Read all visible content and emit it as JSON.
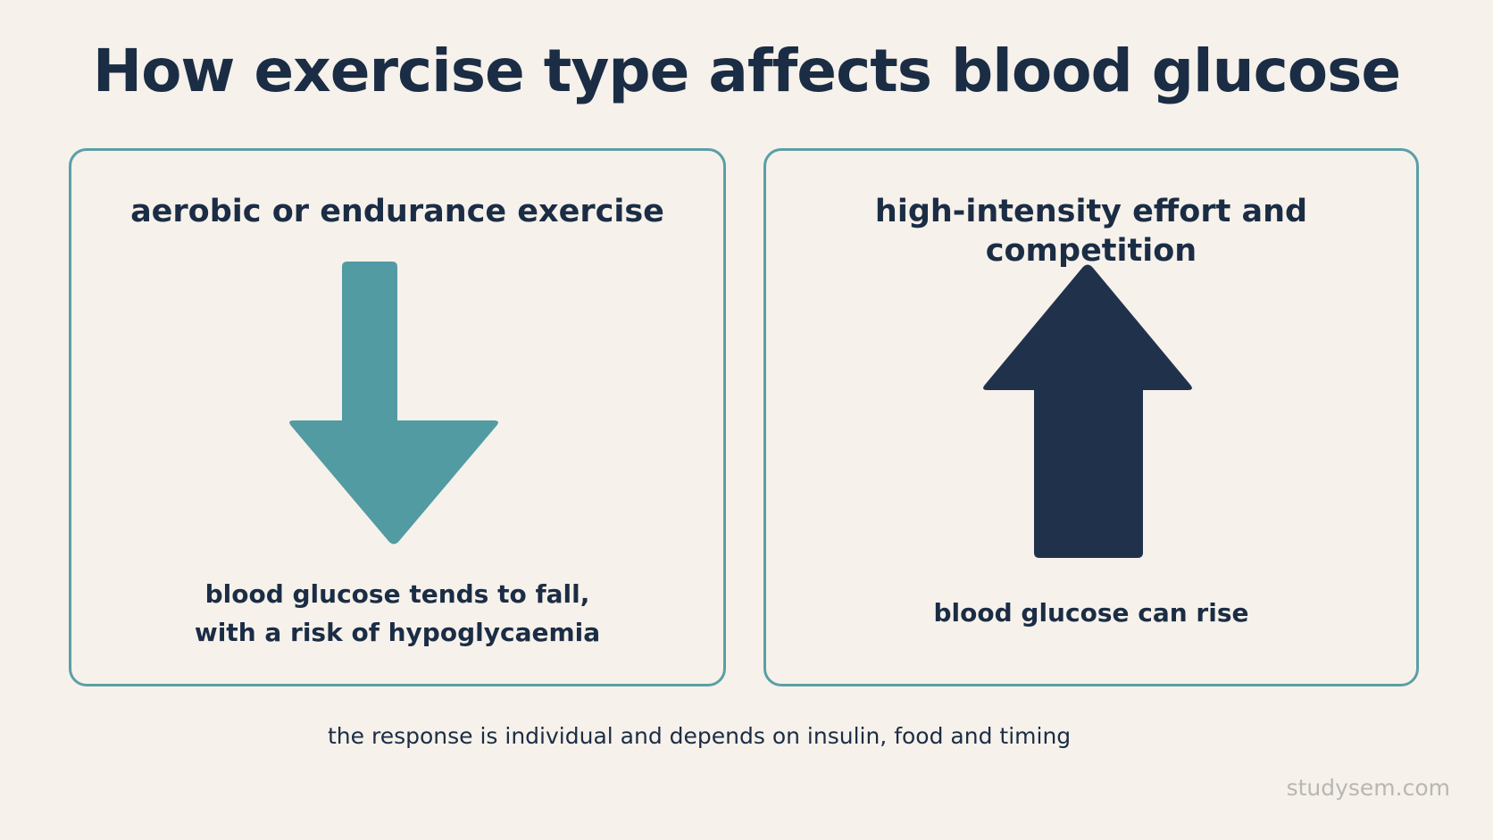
{
  "title": "How exercise type affects blood glucose",
  "panels": {
    "left": {
      "heading": "aerobic or endurance exercise",
      "arrow": {
        "direction": "down",
        "icon": "down-arrow-icon",
        "color": "#529ba3"
      },
      "caption_lines": [
        "blood glucose tends to fall,",
        "with a risk of hypoglycaemia"
      ]
    },
    "right": {
      "heading": "high-intensity effort and competition",
      "arrow": {
        "direction": "up",
        "icon": "up-arrow-icon",
        "color": "#20324b"
      },
      "caption_lines": [
        "blood glucose can rise"
      ]
    }
  },
  "footnote": "the response is individual and depends on insulin, food and timing",
  "watermark": "studysem.com",
  "colors": {
    "background": "#f6f1ea",
    "border": "#5a9fa6",
    "text": "#1b2d45",
    "watermark": "#b9b7b4"
  }
}
